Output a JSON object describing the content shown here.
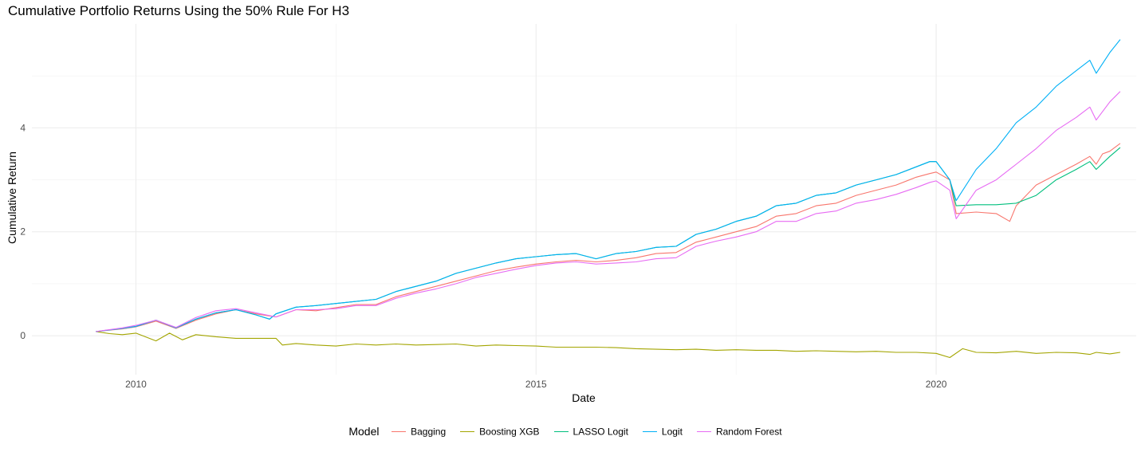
{
  "chart_data": {
    "type": "line",
    "title": "Cumulative Portfolio Returns Using the 50% Rule For H3",
    "xlabel": "Date",
    "ylabel": "Cumulative Return",
    "xlim": [
      2008.7,
      2022.5
    ],
    "ylim": [
      -0.75,
      6.0
    ],
    "x_ticks": [
      2010,
      2015,
      2020
    ],
    "y_ticks": [
      0,
      2,
      4
    ],
    "grid": true,
    "legend_title": "Model",
    "legend_position": "bottom",
    "series": [
      {
        "name": "Bagging",
        "color": "#F8766D",
        "x": [
          2009.5,
          2009.83,
          2010.0,
          2010.25,
          2010.5,
          2010.75,
          2011.0,
          2011.25,
          2011.5,
          2011.75,
          2012.0,
          2012.25,
          2012.5,
          2012.75,
          2013.0,
          2013.25,
          2013.5,
          2013.75,
          2014.0,
          2014.25,
          2014.5,
          2014.75,
          2015.0,
          2015.25,
          2015.5,
          2015.75,
          2016.0,
          2016.25,
          2016.5,
          2016.75,
          2017.0,
          2017.25,
          2017.5,
          2017.75,
          2018.0,
          2018.25,
          2018.5,
          2018.75,
          2019.0,
          2019.25,
          2019.5,
          2019.75,
          2019.92,
          2020.0,
          2020.17,
          2020.25,
          2020.5,
          2020.75,
          2020.92,
          2021.0,
          2021.25,
          2021.5,
          2021.75,
          2021.92,
          2022.0,
          2022.08,
          2022.17,
          2022.3
        ],
        "y": [
          0.08,
          0.13,
          0.17,
          0.28,
          0.14,
          0.3,
          0.42,
          0.5,
          0.42,
          0.36,
          0.5,
          0.48,
          0.54,
          0.6,
          0.6,
          0.75,
          0.85,
          0.95,
          1.05,
          1.15,
          1.25,
          1.32,
          1.38,
          1.42,
          1.45,
          1.42,
          1.45,
          1.5,
          1.58,
          1.6,
          1.8,
          1.9,
          2.0,
          2.1,
          2.3,
          2.35,
          2.5,
          2.55,
          2.7,
          2.8,
          2.9,
          3.05,
          3.12,
          3.15,
          3.0,
          2.35,
          2.38,
          2.35,
          2.2,
          2.5,
          2.9,
          3.1,
          3.3,
          3.45,
          3.3,
          3.5,
          3.55,
          3.7
        ]
      },
      {
        "name": "Boosting XGB",
        "color": "#A3A500",
        "x": [
          2009.5,
          2009.67,
          2009.83,
          2010.0,
          2010.25,
          2010.42,
          2010.58,
          2010.75,
          2011.0,
          2011.25,
          2011.5,
          2011.75,
          2011.83,
          2012.0,
          2012.25,
          2012.5,
          2012.75,
          2013.0,
          2013.25,
          2013.5,
          2013.75,
          2014.0,
          2014.25,
          2014.5,
          2014.75,
          2015.0,
          2015.25,
          2015.5,
          2015.75,
          2016.0,
          2016.25,
          2016.5,
          2016.75,
          2017.0,
          2017.25,
          2017.5,
          2017.75,
          2018.0,
          2018.25,
          2018.5,
          2018.75,
          2019.0,
          2019.25,
          2019.5,
          2019.75,
          2020.0,
          2020.17,
          2020.33,
          2020.5,
          2020.75,
          2021.0,
          2021.25,
          2021.5,
          2021.75,
          2021.92,
          2022.0,
          2022.17,
          2022.3
        ],
        "y": [
          0.08,
          0.04,
          0.02,
          0.05,
          -0.1,
          0.05,
          -0.08,
          0.02,
          -0.02,
          -0.05,
          -0.05,
          -0.05,
          -0.18,
          -0.15,
          -0.18,
          -0.2,
          -0.16,
          -0.18,
          -0.16,
          -0.18,
          -0.17,
          -0.16,
          -0.2,
          -0.18,
          -0.19,
          -0.2,
          -0.22,
          -0.22,
          -0.22,
          -0.23,
          -0.25,
          -0.26,
          -0.27,
          -0.26,
          -0.28,
          -0.27,
          -0.28,
          -0.28,
          -0.3,
          -0.29,
          -0.3,
          -0.31,
          -0.3,
          -0.32,
          -0.32,
          -0.34,
          -0.42,
          -0.25,
          -0.32,
          -0.33,
          -0.3,
          -0.34,
          -0.32,
          -0.33,
          -0.36,
          -0.32,
          -0.35,
          -0.32
        ]
      },
      {
        "name": "LASSO Logit",
        "color": "#00BF7D",
        "x": [
          2009.5,
          2009.83,
          2010.0,
          2010.25,
          2010.5,
          2010.75,
          2011.0,
          2011.25,
          2011.5,
          2011.67,
          2011.75,
          2012.0,
          2012.25,
          2012.5,
          2012.75,
          2013.0,
          2013.25,
          2013.5,
          2013.75,
          2014.0,
          2014.25,
          2014.5,
          2014.75,
          2015.0,
          2015.25,
          2015.5,
          2015.75,
          2016.0,
          2016.25,
          2016.5,
          2016.75,
          2017.0,
          2017.25,
          2017.5,
          2017.75,
          2018.0,
          2018.25,
          2018.5,
          2018.75,
          2019.0,
          2019.25,
          2019.5,
          2019.75,
          2019.92,
          2020.0,
          2020.17,
          2020.25,
          2020.5,
          2020.75,
          2021.0,
          2021.25,
          2021.5,
          2021.75,
          2021.92,
          2022.0,
          2022.17,
          2022.3
        ],
        "y": [
          0.08,
          0.14,
          0.18,
          0.3,
          0.15,
          0.32,
          0.44,
          0.5,
          0.4,
          0.32,
          0.42,
          0.55,
          0.58,
          0.62,
          0.66,
          0.7,
          0.85,
          0.95,
          1.05,
          1.2,
          1.3,
          1.4,
          1.48,
          1.52,
          1.56,
          1.58,
          1.48,
          1.58,
          1.62,
          1.7,
          1.72,
          1.95,
          2.05,
          2.2,
          2.3,
          2.5,
          2.55,
          2.7,
          2.75,
          2.9,
          3.0,
          3.1,
          3.25,
          3.35,
          3.35,
          3.0,
          2.5,
          2.52,
          2.52,
          2.55,
          2.7,
          3.0,
          3.2,
          3.35,
          3.2,
          3.45,
          3.62
        ]
      },
      {
        "name": "Logit",
        "color": "#00B0F6",
        "x": [
          2009.5,
          2009.83,
          2010.0,
          2010.25,
          2010.5,
          2010.75,
          2011.0,
          2011.25,
          2011.5,
          2011.67,
          2011.75,
          2012.0,
          2012.25,
          2012.5,
          2012.75,
          2013.0,
          2013.25,
          2013.5,
          2013.75,
          2014.0,
          2014.25,
          2014.5,
          2014.75,
          2015.0,
          2015.25,
          2015.5,
          2015.75,
          2016.0,
          2016.25,
          2016.5,
          2016.75,
          2017.0,
          2017.25,
          2017.5,
          2017.75,
          2018.0,
          2018.25,
          2018.5,
          2018.75,
          2019.0,
          2019.25,
          2019.5,
          2019.75,
          2019.92,
          2020.0,
          2020.17,
          2020.25,
          2020.5,
          2020.75,
          2021.0,
          2021.25,
          2021.5,
          2021.75,
          2021.92,
          2022.0,
          2022.17,
          2022.3
        ],
        "y": [
          0.08,
          0.14,
          0.18,
          0.3,
          0.15,
          0.32,
          0.44,
          0.5,
          0.4,
          0.32,
          0.42,
          0.55,
          0.58,
          0.62,
          0.66,
          0.7,
          0.85,
          0.95,
          1.05,
          1.2,
          1.3,
          1.4,
          1.48,
          1.52,
          1.56,
          1.58,
          1.48,
          1.58,
          1.62,
          1.7,
          1.72,
          1.95,
          2.05,
          2.2,
          2.3,
          2.5,
          2.55,
          2.7,
          2.75,
          2.9,
          3.0,
          3.1,
          3.25,
          3.35,
          3.35,
          3.0,
          2.6,
          3.2,
          3.6,
          4.1,
          4.4,
          4.8,
          5.1,
          5.3,
          5.05,
          5.45,
          5.7
        ]
      },
      {
        "name": "Random Forest",
        "color": "#E76BF3",
        "x": [
          2009.5,
          2009.83,
          2010.0,
          2010.25,
          2010.5,
          2010.75,
          2011.0,
          2011.25,
          2011.5,
          2011.75,
          2012.0,
          2012.25,
          2012.5,
          2012.75,
          2013.0,
          2013.25,
          2013.5,
          2013.75,
          2014.0,
          2014.25,
          2014.5,
          2014.75,
          2015.0,
          2015.25,
          2015.5,
          2015.75,
          2016.0,
          2016.25,
          2016.5,
          2016.75,
          2017.0,
          2017.25,
          2017.5,
          2017.75,
          2018.0,
          2018.25,
          2018.5,
          2018.75,
          2019.0,
          2019.25,
          2019.5,
          2019.75,
          2019.92,
          2020.0,
          2020.17,
          2020.25,
          2020.5,
          2020.75,
          2021.0,
          2021.25,
          2021.5,
          2021.75,
          2021.92,
          2022.0,
          2022.17,
          2022.3
        ],
        "y": [
          0.08,
          0.15,
          0.2,
          0.3,
          0.16,
          0.35,
          0.48,
          0.52,
          0.44,
          0.36,
          0.5,
          0.5,
          0.52,
          0.58,
          0.58,
          0.72,
          0.82,
          0.9,
          1.0,
          1.12,
          1.2,
          1.28,
          1.35,
          1.4,
          1.42,
          1.38,
          1.4,
          1.42,
          1.48,
          1.5,
          1.72,
          1.82,
          1.9,
          2.0,
          2.2,
          2.2,
          2.35,
          2.4,
          2.55,
          2.62,
          2.72,
          2.85,
          2.95,
          2.98,
          2.8,
          2.25,
          2.8,
          3.0,
          3.3,
          3.6,
          3.95,
          4.2,
          4.4,
          4.15,
          4.5,
          4.7
        ]
      }
    ]
  }
}
